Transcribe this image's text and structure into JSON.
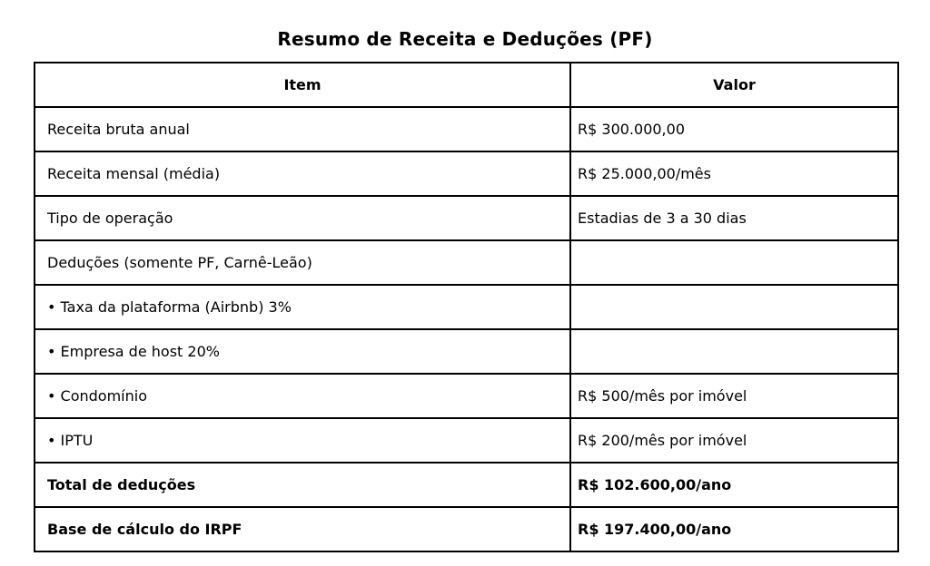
{
  "title": "Resumo de Receita e Deduções (PF)",
  "table": {
    "headers": [
      "Item",
      "Valor"
    ],
    "rows": [
      {
        "item": "Receita bruta anual",
        "valor": "R$ 300.000,00",
        "bold": false
      },
      {
        "item": "Receita mensal (média)",
        "valor": "R$ 25.000,00/mês",
        "bold": false
      },
      {
        "item": "Tipo de operação",
        "valor": "Estadias de 3 a 30 dias",
        "bold": false
      },
      {
        "item": "Deduções (somente PF, Carnê-Leão)",
        "valor": "",
        "bold": false
      },
      {
        "item": "• Taxa da plataforma (Airbnb) 3%",
        "valor": "",
        "bold": false
      },
      {
        "item": "• Empresa de host 20%",
        "valor": "",
        "bold": false
      },
      {
        "item": "• Condomínio",
        "valor": "R$ 500/mês por imóvel",
        "bold": false
      },
      {
        "item": "• IPTU",
        "valor": "R$ 200/mês por imóvel",
        "bold": false
      },
      {
        "item": "Total de deduções",
        "valor": "R$ 102.600,00/ano",
        "bold": true
      },
      {
        "item": "Base de cálculo do IRPF",
        "valor": "R$ 197.400,00/ano",
        "bold": true
      }
    ]
  },
  "colors": {
    "background": "#ffffff",
    "border": "#000000",
    "text": "#000000"
  }
}
